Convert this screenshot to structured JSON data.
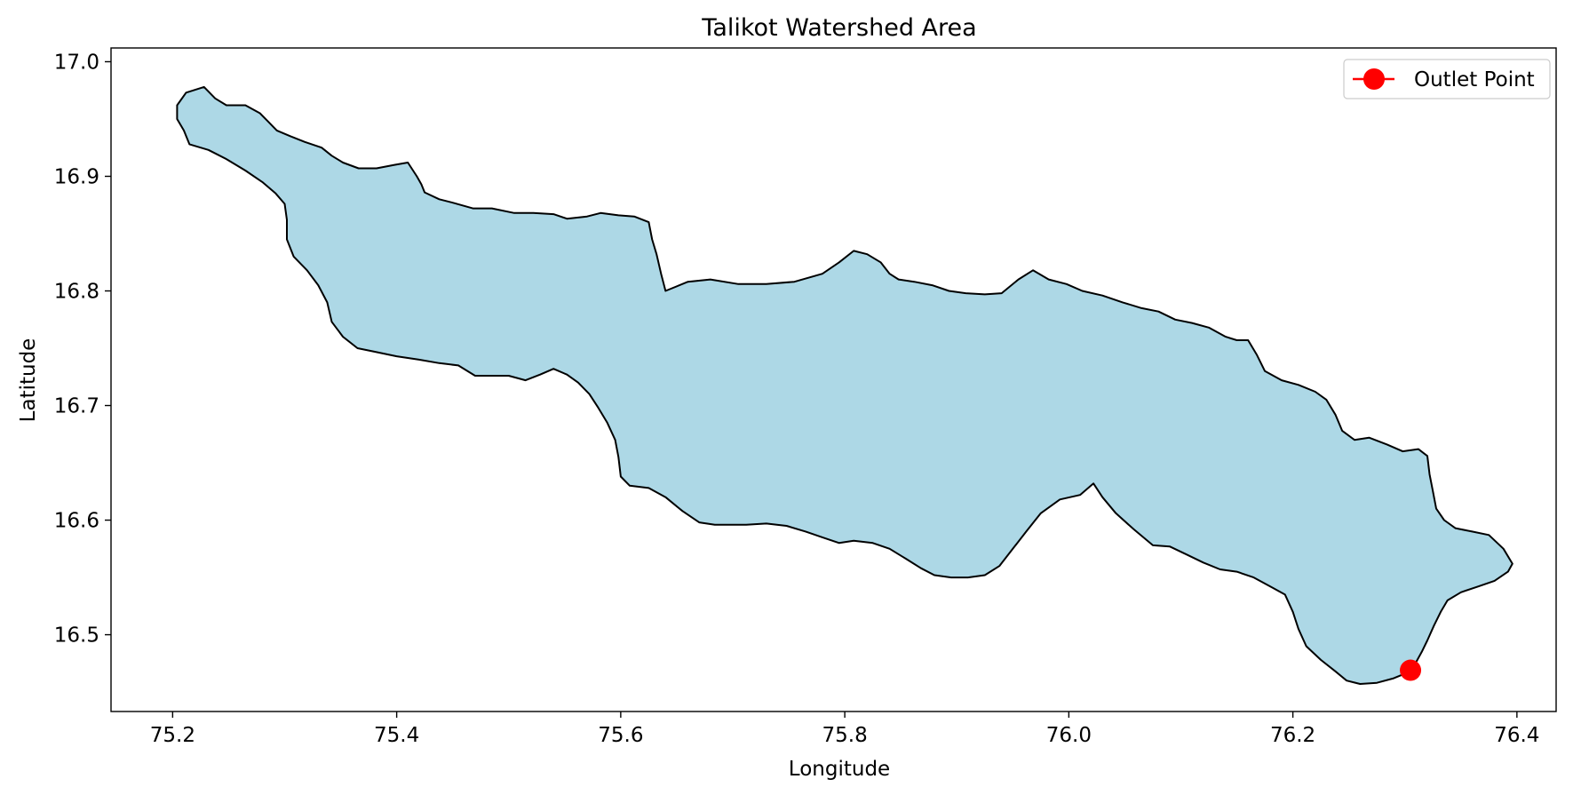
{
  "chart_data": {
    "type": "map",
    "title": "Talikot Watershed Area",
    "xlabel": "Longitude",
    "ylabel": "Latitude",
    "xlim": [
      75.145,
      76.435
    ],
    "ylim": [
      16.433,
      17.012
    ],
    "xticks": [
      75.2,
      75.4,
      75.6,
      75.8,
      76.0,
      76.2,
      76.4
    ],
    "xtick_labels": [
      "75.2",
      "75.4",
      "75.6",
      "75.8",
      "76.0",
      "76.2",
      "76.4"
    ],
    "yticks": [
      16.5,
      16.6,
      16.7,
      16.8,
      16.9,
      17.0
    ],
    "ytick_labels": [
      "16.5",
      "16.6",
      "16.7",
      "16.8",
      "16.9",
      "17.0"
    ],
    "grid": false,
    "legend_position": "top-right",
    "watershed": {
      "fill_color": "#add8e6",
      "edge_color": "#000000",
      "boundary": [
        [
          75.204,
          16.962
        ],
        [
          75.212,
          16.973
        ],
        [
          75.228,
          16.978
        ],
        [
          75.238,
          16.968
        ],
        [
          75.248,
          16.962
        ],
        [
          75.265,
          16.962
        ],
        [
          75.278,
          16.955
        ],
        [
          75.285,
          16.948
        ],
        [
          75.293,
          16.94
        ],
        [
          75.305,
          16.935
        ],
        [
          75.318,
          16.93
        ],
        [
          75.333,
          16.925
        ],
        [
          75.342,
          16.918
        ],
        [
          75.352,
          16.912
        ],
        [
          75.366,
          16.907
        ],
        [
          75.382,
          16.907
        ],
        [
          75.398,
          16.91
        ],
        [
          75.41,
          16.912
        ],
        [
          75.418,
          16.9
        ],
        [
          75.422,
          16.893
        ],
        [
          75.425,
          16.886
        ],
        [
          75.438,
          16.88
        ],
        [
          75.45,
          16.877
        ],
        [
          75.468,
          16.872
        ],
        [
          75.485,
          16.872
        ],
        [
          75.505,
          16.868
        ],
        [
          75.522,
          16.868
        ],
        [
          75.54,
          16.867
        ],
        [
          75.552,
          16.863
        ],
        [
          75.57,
          16.865
        ],
        [
          75.582,
          16.868
        ],
        [
          75.598,
          16.866
        ],
        [
          75.612,
          16.865
        ],
        [
          75.625,
          16.86
        ],
        [
          75.628,
          16.845
        ],
        [
          75.632,
          16.832
        ],
        [
          75.636,
          16.815
        ],
        [
          75.64,
          16.8
        ],
        [
          75.66,
          16.808
        ],
        [
          75.68,
          16.81
        ],
        [
          75.705,
          16.806
        ],
        [
          75.73,
          16.806
        ],
        [
          75.755,
          16.808
        ],
        [
          75.78,
          16.815
        ],
        [
          75.795,
          16.825
        ],
        [
          75.808,
          16.835
        ],
        [
          75.82,
          16.832
        ],
        [
          75.832,
          16.825
        ],
        [
          75.84,
          16.815
        ],
        [
          75.848,
          16.81
        ],
        [
          75.862,
          16.808
        ],
        [
          75.878,
          16.805
        ],
        [
          75.893,
          16.8
        ],
        [
          75.908,
          16.798
        ],
        [
          75.925,
          16.797
        ],
        [
          75.94,
          16.798
        ],
        [
          75.955,
          16.81
        ],
        [
          75.968,
          16.818
        ],
        [
          75.982,
          16.81
        ],
        [
          75.998,
          16.806
        ],
        [
          76.012,
          16.8
        ],
        [
          76.03,
          16.796
        ],
        [
          76.048,
          16.79
        ],
        [
          76.065,
          16.785
        ],
        [
          76.08,
          16.782
        ],
        [
          76.095,
          16.775
        ],
        [
          76.11,
          16.772
        ],
        [
          76.125,
          16.768
        ],
        [
          76.14,
          16.76
        ],
        [
          76.15,
          16.757
        ],
        [
          76.16,
          16.757
        ],
        [
          76.168,
          16.744
        ],
        [
          76.175,
          16.73
        ],
        [
          76.19,
          16.722
        ],
        [
          76.205,
          16.718
        ],
        [
          76.22,
          16.712
        ],
        [
          76.23,
          16.705
        ],
        [
          76.238,
          16.692
        ],
        [
          76.244,
          16.678
        ],
        [
          76.255,
          16.67
        ],
        [
          76.268,
          16.672
        ],
        [
          76.284,
          16.666
        ],
        [
          76.298,
          16.66
        ],
        [
          76.312,
          16.662
        ],
        [
          76.32,
          16.656
        ],
        [
          76.322,
          16.64
        ],
        [
          76.325,
          16.625
        ],
        [
          76.328,
          16.61
        ],
        [
          76.335,
          16.6
        ],
        [
          76.345,
          16.593
        ],
        [
          76.36,
          16.59
        ],
        [
          76.375,
          16.587
        ],
        [
          76.388,
          16.575
        ],
        [
          76.396,
          16.562
        ],
        [
          76.392,
          16.555
        ],
        [
          76.38,
          16.547
        ],
        [
          76.365,
          16.542
        ],
        [
          76.35,
          16.537
        ],
        [
          76.338,
          16.53
        ],
        [
          76.332,
          16.52
        ],
        [
          76.326,
          16.508
        ],
        [
          76.32,
          16.495
        ],
        [
          76.315,
          16.485
        ],
        [
          76.31,
          16.476
        ],
        [
          76.305,
          16.468
        ],
        [
          76.29,
          16.462
        ],
        [
          76.275,
          16.458
        ],
        [
          76.26,
          16.457
        ],
        [
          76.248,
          16.46
        ],
        [
          76.238,
          16.468
        ],
        [
          76.225,
          16.478
        ],
        [
          76.212,
          16.49
        ],
        [
          76.205,
          16.505
        ],
        [
          76.2,
          16.52
        ],
        [
          76.193,
          16.535
        ],
        [
          76.18,
          16.542
        ],
        [
          76.165,
          16.55
        ],
        [
          76.15,
          16.555
        ],
        [
          76.135,
          16.557
        ],
        [
          76.12,
          16.563
        ],
        [
          76.105,
          16.57
        ],
        [
          76.09,
          16.577
        ],
        [
          76.075,
          16.578
        ],
        [
          76.058,
          16.592
        ],
        [
          76.042,
          16.606
        ],
        [
          76.03,
          16.62
        ],
        [
          76.022,
          16.632
        ],
        [
          76.01,
          16.622
        ],
        [
          75.992,
          16.618
        ],
        [
          75.975,
          16.606
        ],
        [
          75.962,
          16.59
        ],
        [
          75.95,
          16.575
        ],
        [
          75.938,
          16.56
        ],
        [
          75.925,
          16.552
        ],
        [
          75.91,
          16.55
        ],
        [
          75.895,
          16.55
        ],
        [
          75.88,
          16.552
        ],
        [
          75.868,
          16.558
        ],
        [
          75.855,
          16.566
        ],
        [
          75.84,
          16.575
        ],
        [
          75.825,
          16.58
        ],
        [
          75.808,
          16.582
        ],
        [
          75.795,
          16.58
        ],
        [
          75.78,
          16.585
        ],
        [
          75.765,
          16.59
        ],
        [
          75.748,
          16.595
        ],
        [
          75.73,
          16.597
        ],
        [
          75.712,
          16.596
        ],
        [
          75.698,
          16.596
        ],
        [
          75.684,
          16.596
        ],
        [
          75.67,
          16.598
        ],
        [
          75.655,
          16.608
        ],
        [
          75.64,
          16.62
        ],
        [
          75.625,
          16.628
        ],
        [
          75.608,
          16.63
        ],
        [
          75.6,
          16.638
        ],
        [
          75.598,
          16.655
        ],
        [
          75.595,
          16.67
        ],
        [
          75.588,
          16.685
        ],
        [
          75.58,
          16.698
        ],
        [
          75.572,
          16.71
        ],
        [
          75.562,
          16.72
        ],
        [
          75.552,
          16.727
        ],
        [
          75.54,
          16.732
        ],
        [
          75.528,
          16.727
        ],
        [
          75.515,
          16.722
        ],
        [
          75.5,
          16.726
        ],
        [
          75.485,
          16.726
        ],
        [
          75.47,
          16.726
        ],
        [
          75.455,
          16.735
        ],
        [
          75.438,
          16.737
        ],
        [
          75.42,
          16.74
        ],
        [
          75.4,
          16.743
        ],
        [
          75.38,
          16.747
        ],
        [
          75.365,
          16.75
        ],
        [
          75.352,
          16.76
        ],
        [
          75.342,
          16.773
        ],
        [
          75.338,
          16.79
        ],
        [
          75.33,
          16.805
        ],
        [
          75.32,
          16.818
        ],
        [
          75.308,
          16.83
        ],
        [
          75.302,
          16.845
        ],
        [
          75.302,
          16.862
        ],
        [
          75.3,
          16.876
        ],
        [
          75.292,
          16.885
        ],
        [
          75.28,
          16.895
        ],
        [
          75.265,
          16.905
        ],
        [
          75.248,
          16.915
        ],
        [
          75.232,
          16.923
        ],
        [
          75.215,
          16.928
        ],
        [
          75.21,
          16.94
        ],
        [
          75.204,
          16.95
        ],
        [
          75.204,
          16.962
        ]
      ]
    },
    "series": [
      {
        "name": "Outlet Point",
        "type": "point",
        "color": "#ff0000",
        "x": [
          76.305
        ],
        "y": [
          16.469
        ]
      }
    ]
  }
}
